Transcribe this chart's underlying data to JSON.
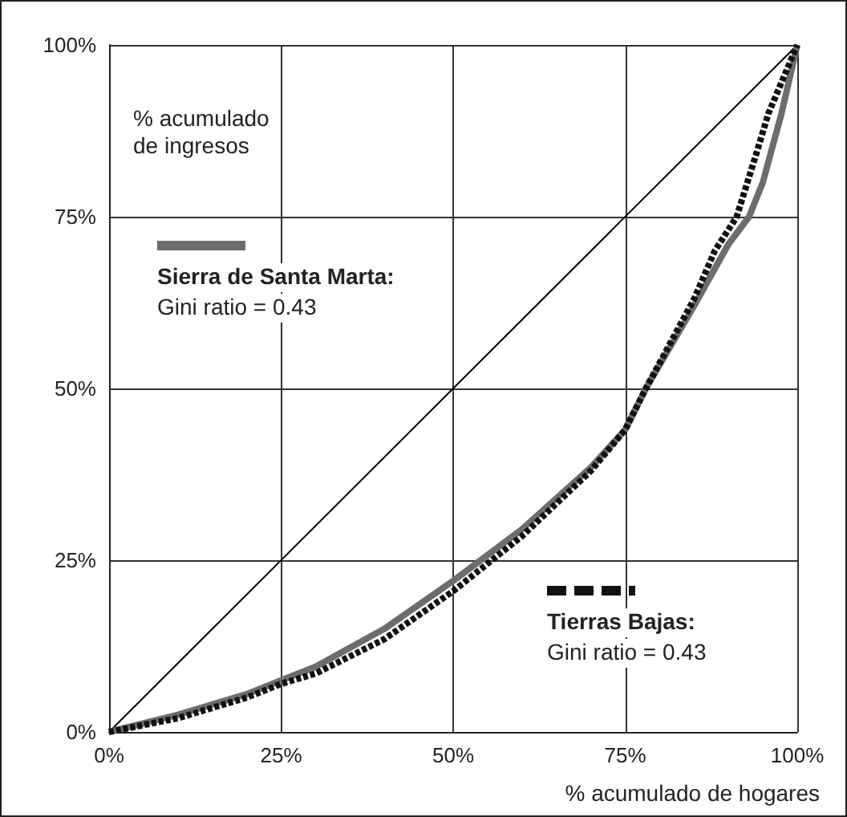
{
  "chart_data": {
    "type": "line",
    "ylabel": "% acumulado\nde ingresos",
    "xlabel": "% acumulado de hogares",
    "xlim": [
      0,
      100
    ],
    "ylim": [
      0,
      100
    ],
    "xticks": [
      {
        "value": 0,
        "label": "0%"
      },
      {
        "value": 25,
        "label": "25%"
      },
      {
        "value": 50,
        "label": "50%"
      },
      {
        "value": 75,
        "label": "75%"
      },
      {
        "value": 100,
        "label": "100%"
      }
    ],
    "yticks": [
      {
        "value": 0,
        "label": "0%"
      },
      {
        "value": 25,
        "label": "25%"
      },
      {
        "value": 50,
        "label": "50%"
      },
      {
        "value": 75,
        "label": "75%"
      },
      {
        "value": 100,
        "label": "100%"
      }
    ],
    "grid": true,
    "marker": "none",
    "legend": "bottom left",
    "series": [
      {
        "color": "#000000",
        "line_style": "solid",
        "x": [
          0,
          100
        ],
        "values": [
          0,
          100
        ]
      },
      {
        "name": "Sierra de Santa Marta:",
        "color": "#6d6d6d",
        "line_style": "solid",
        "x": [
          0,
          10,
          20,
          25,
          30,
          40,
          50,
          60,
          70,
          75,
          78,
          85,
          90,
          93,
          95,
          97.7,
          100
        ],
        "values": [
          0,
          2.5,
          5.5,
          7.5,
          9.5,
          15,
          22,
          29.5,
          38.5,
          44,
          50,
          62,
          71,
          75,
          80,
          90,
          100
        ]
      },
      {
        "name": "Tierras Bajas:",
        "color": "#111111",
        "line_style": "dashed",
        "x": [
          0,
          10,
          20,
          25,
          30,
          40,
          50,
          60,
          70,
          75,
          78,
          85,
          88,
          91.2,
          94,
          95.8,
          100
        ],
        "values": [
          0,
          2,
          5,
          7,
          8.5,
          13.5,
          20.5,
          28.5,
          38,
          44,
          50,
          63,
          70,
          75,
          84,
          90,
          100
        ]
      }
    ],
    "annotations": [
      "Gini ratio = 0.43",
      "Gini ratio = 0.43"
    ]
  }
}
